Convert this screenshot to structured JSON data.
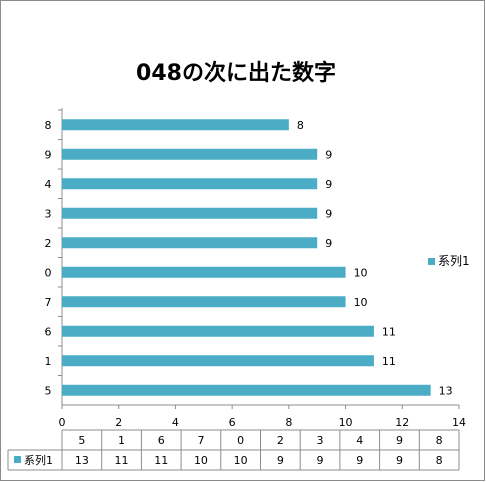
{
  "chart_data": {
    "type": "bar",
    "orientation": "horizontal",
    "title": "048の次に出た数字",
    "categories": [
      "5",
      "1",
      "6",
      "7",
      "0",
      "2",
      "3",
      "4",
      "9",
      "8"
    ],
    "series": [
      {
        "name": "系列1",
        "values": [
          13,
          11,
          11,
          10,
          10,
          9,
          9,
          9,
          9,
          8
        ],
        "color": "#4BACC6"
      }
    ],
    "xlim": [
      0,
      14
    ],
    "x_ticks": [
      0,
      2,
      4,
      6,
      8,
      10,
      12,
      14
    ],
    "grid": false,
    "legend": "right",
    "data_labels": true,
    "data_table": true
  }
}
